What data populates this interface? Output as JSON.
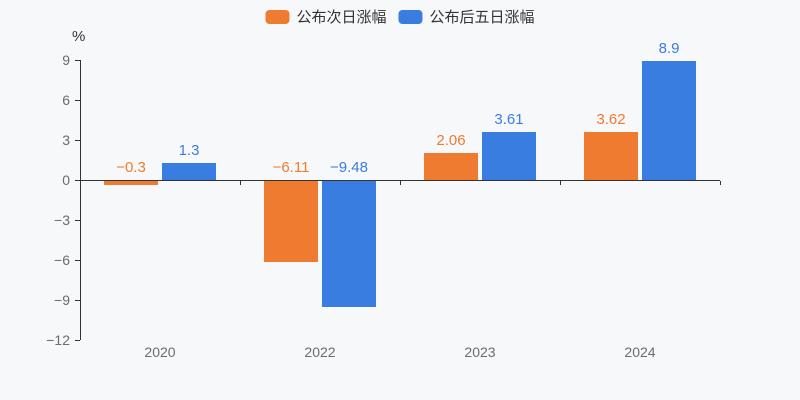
{
  "chart_data": {
    "type": "bar",
    "categories": [
      "2020",
      "2022",
      "2023",
      "2024"
    ],
    "series": [
      {
        "name": "公布次日涨幅",
        "color": "#ee7b30",
        "values": [
          -0.3,
          -6.11,
          2.06,
          3.62
        ]
      },
      {
        "name": "公布后五日涨幅",
        "color": "#3a7de0",
        "values": [
          1.3,
          -9.48,
          3.61,
          8.9
        ]
      }
    ],
    "ylabel": "%",
    "ylim": [
      -12,
      9
    ],
    "yticks": [
      9,
      6,
      3,
      0,
      -3,
      -6,
      -9,
      -12
    ],
    "grid": false,
    "legend_position": "top",
    "value_labels": true
  },
  "colors": {
    "background": "#f7f8fa",
    "axis_line": "#333333",
    "tick_text": "#696c72",
    "legend_text": "#333333"
  }
}
